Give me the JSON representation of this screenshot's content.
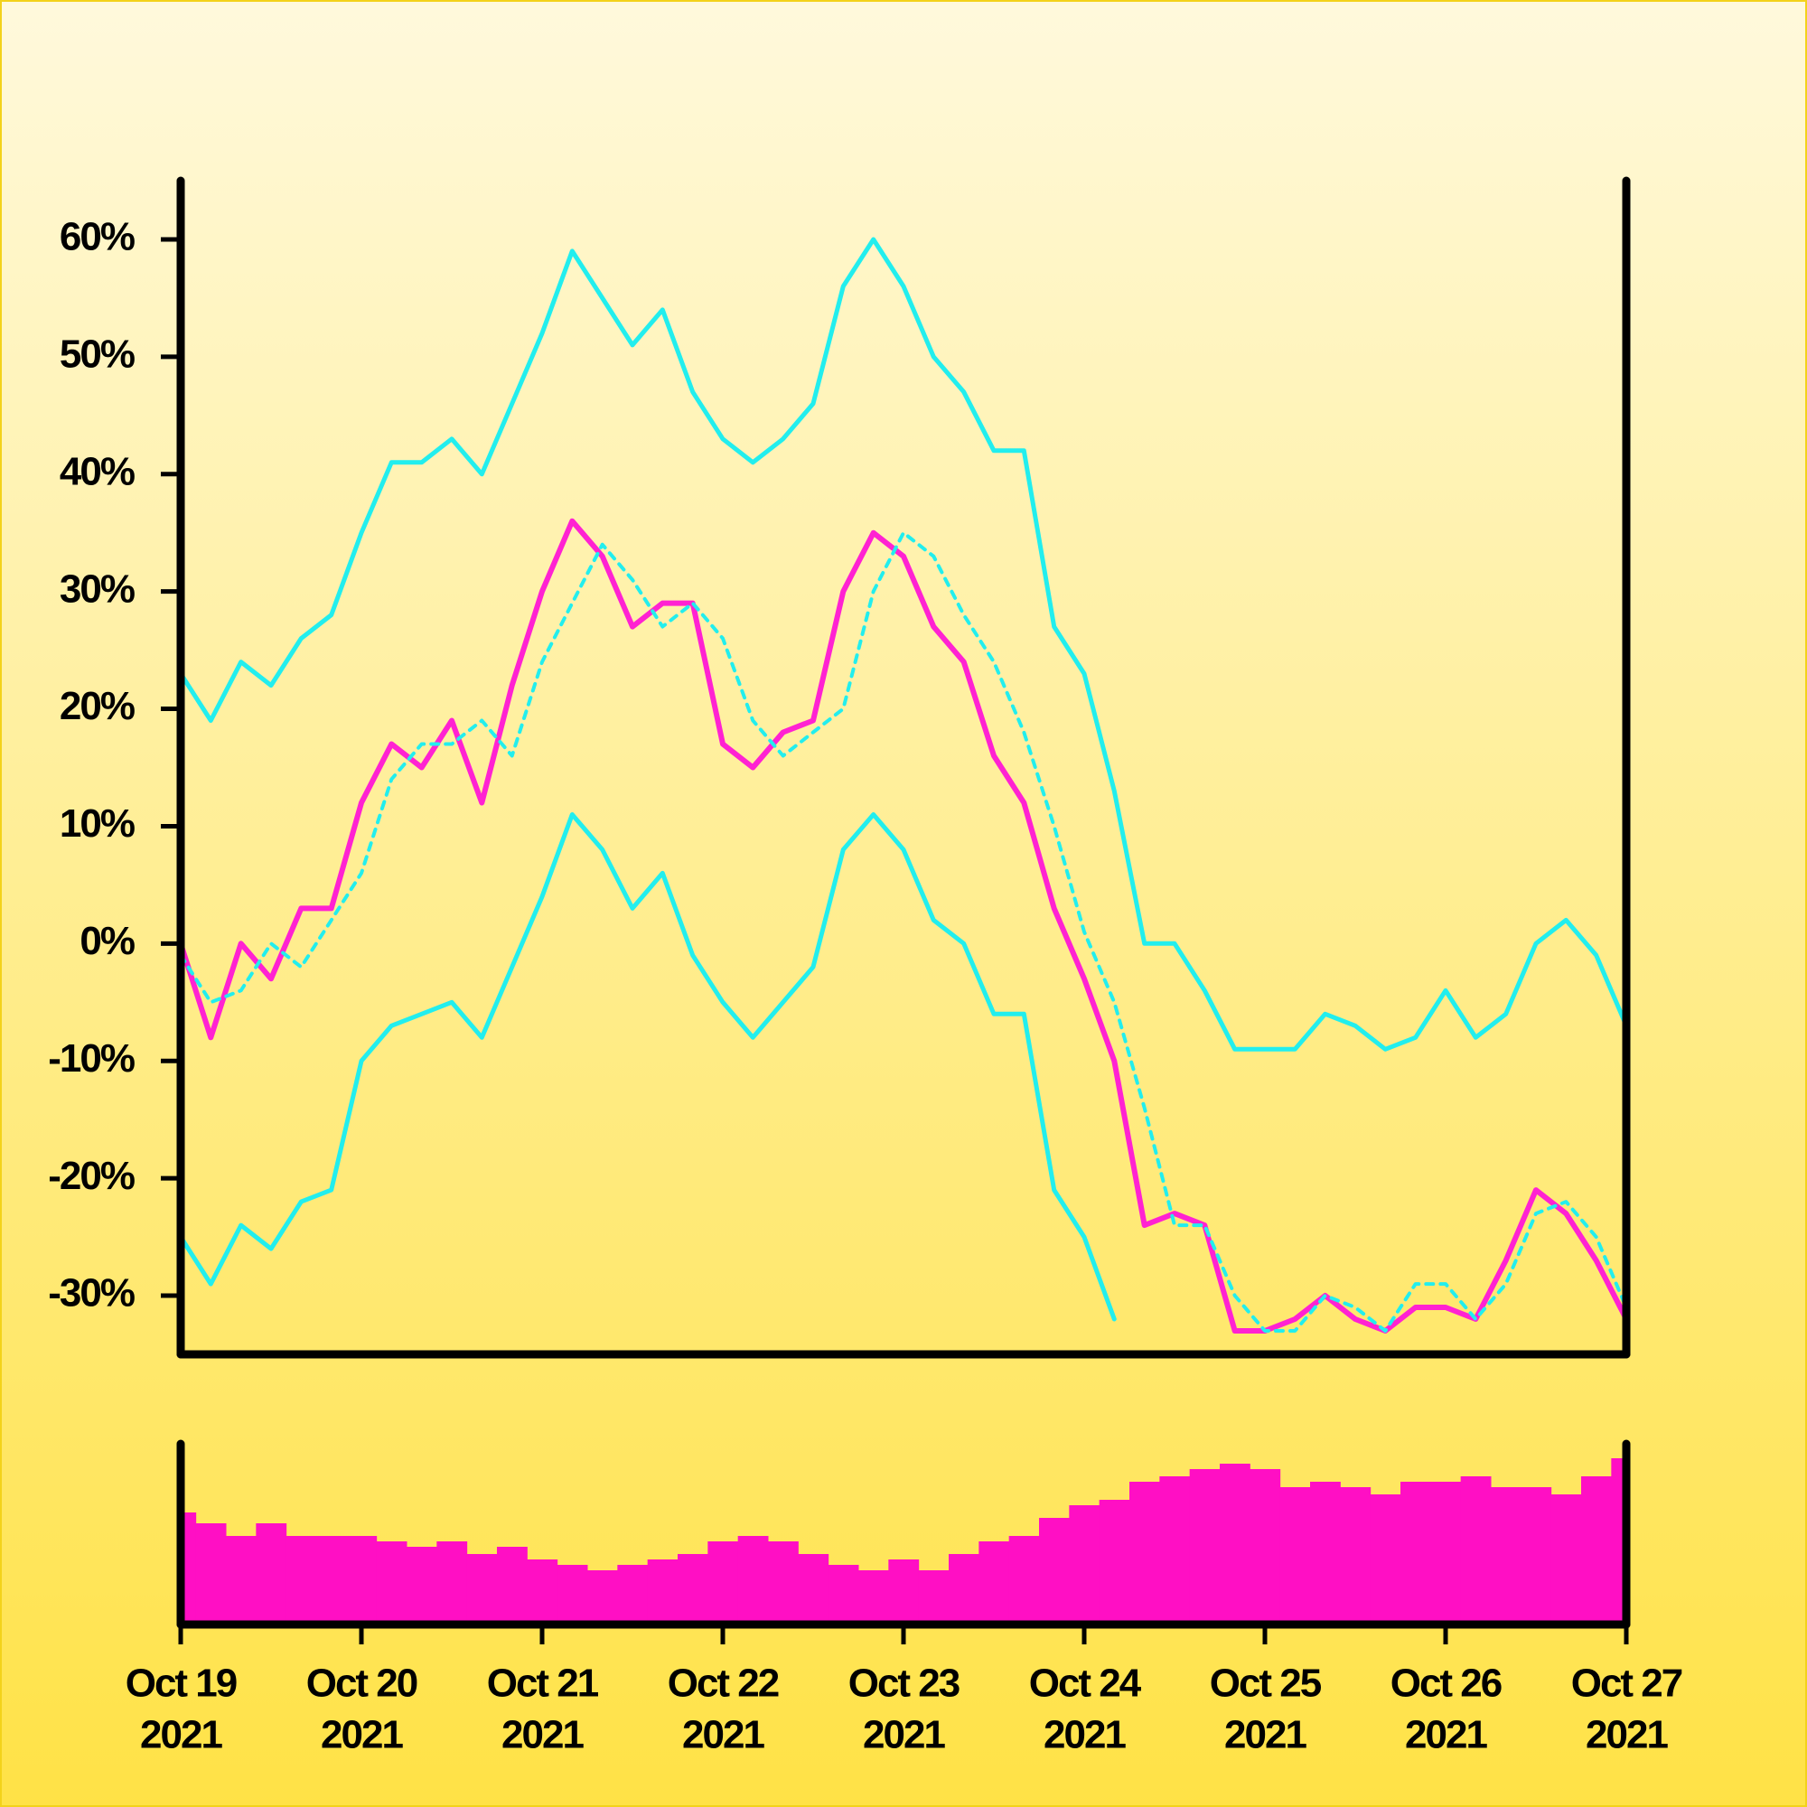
{
  "chart_data": [
    {
      "type": "line",
      "x": [
        "2021-10-19T00:00",
        "2021-10-19T04:00",
        "2021-10-19T08:00",
        "2021-10-19T12:00",
        "2021-10-19T16:00",
        "2021-10-19T20:00",
        "2021-10-20T00:00",
        "2021-10-20T04:00",
        "2021-10-20T08:00",
        "2021-10-20T12:00",
        "2021-10-20T16:00",
        "2021-10-20T20:00",
        "2021-10-21T00:00",
        "2021-10-21T04:00",
        "2021-10-21T08:00",
        "2021-10-21T12:00",
        "2021-10-21T16:00",
        "2021-10-21T20:00",
        "2021-10-22T00:00",
        "2021-10-22T04:00",
        "2021-10-22T08:00",
        "2021-10-22T12:00",
        "2021-10-22T16:00",
        "2021-10-22T20:00",
        "2021-10-23T00:00",
        "2021-10-23T04:00",
        "2021-10-23T08:00",
        "2021-10-23T12:00",
        "2021-10-23T16:00",
        "2021-10-23T20:00",
        "2021-10-24T00:00",
        "2021-10-24T04:00",
        "2021-10-24T08:00",
        "2021-10-24T12:00",
        "2021-10-24T16:00",
        "2021-10-24T20:00",
        "2021-10-25T00:00",
        "2021-10-25T04:00",
        "2021-10-25T08:00",
        "2021-10-25T12:00",
        "2021-10-25T16:00",
        "2021-10-25T20:00",
        "2021-10-26T00:00",
        "2021-10-26T04:00",
        "2021-10-26T08:00",
        "2021-10-26T12:00",
        "2021-10-26T16:00",
        "2021-10-26T20:00",
        "2021-10-27T00:00"
      ],
      "xlim": [
        "2021-10-19T00:00",
        "2021-10-27T00:00"
      ],
      "series": [
        {
          "color": "#ff22d2",
          "style": "solid",
          "width": 6,
          "values": [
            0,
            -8,
            0,
            -3,
            3,
            3,
            12,
            17,
            15,
            19,
            12,
            22,
            30,
            36,
            33,
            27,
            29,
            29,
            17,
            15,
            18,
            19,
            30,
            35,
            33,
            27,
            24,
            16,
            12,
            3,
            -3,
            -10,
            -24,
            -23,
            -24,
            -33,
            -33,
            -32,
            -30,
            -32,
            -33,
            -31,
            -31,
            -32,
            -27,
            -21,
            -23,
            -27,
            -32
          ]
        },
        {
          "color": "#22eeee",
          "style": "dashed",
          "width": 4,
          "values": [
            -1,
            -5,
            -4,
            0,
            -2,
            2,
            6,
            14,
            17,
            17,
            19,
            16,
            24,
            29,
            34,
            31,
            27,
            29,
            26,
            19,
            16,
            18,
            20,
            30,
            35,
            33,
            28,
            24,
            18,
            10,
            1,
            -5,
            -14,
            -24,
            -24,
            -30,
            -33,
            -33,
            -30,
            -31,
            -33,
            -29,
            -29,
            -32,
            -29,
            -23,
            -22,
            -25,
            -31
          ]
        },
        {
          "color": "#22eeee",
          "style": "solid",
          "width": 5,
          "values": [
            23,
            19,
            24,
            22,
            26,
            28,
            35,
            41,
            41,
            43,
            40,
            46,
            52,
            59,
            55,
            51,
            54,
            47,
            43,
            41,
            43,
            46,
            56,
            60,
            56,
            50,
            47,
            42,
            42,
            27,
            23,
            13,
            0,
            0,
            -4,
            -9,
            -9,
            -9,
            -6,
            -7,
            -9,
            -8,
            -4,
            -8,
            -6,
            0,
            2,
            -1,
            -7
          ]
        },
        {
          "color": "#22eeee",
          "style": "solid",
          "width": 5,
          "values": [
            -25,
            -29,
            -24,
            -26,
            -22,
            -21,
            -10,
            -7,
            -6,
            -5,
            -8,
            -2,
            4,
            11,
            8,
            3,
            6,
            -1,
            -5,
            -8,
            -5,
            -2,
            8,
            11,
            8,
            2,
            0,
            -6,
            -6,
            -21,
            -25,
            -32,
            null,
            null,
            null,
            null,
            null,
            null,
            null,
            null,
            null,
            null,
            null,
            null,
            null,
            null,
            null,
            null,
            null
          ]
        }
      ],
      "ylim": [
        -35,
        65
      ],
      "yticks": [
        {
          "value": -30,
          "label": "-30%"
        },
        {
          "value": -20,
          "label": "-20%"
        },
        {
          "value": -10,
          "label": "-10%"
        },
        {
          "value": 0,
          "label": "0%"
        },
        {
          "value": 10,
          "label": "10%"
        },
        {
          "value": 20,
          "label": "20%"
        },
        {
          "value": 30,
          "label": "30%"
        },
        {
          "value": 40,
          "label": "40%"
        },
        {
          "value": 50,
          "label": "50%"
        },
        {
          "value": 60,
          "label": "60%"
        }
      ]
    },
    {
      "type": "bar",
      "x": [
        "2021-10-19T00:00",
        "2021-10-19T04:00",
        "2021-10-19T08:00",
        "2021-10-19T12:00",
        "2021-10-19T16:00",
        "2021-10-19T20:00",
        "2021-10-20T00:00",
        "2021-10-20T04:00",
        "2021-10-20T08:00",
        "2021-10-20T12:00",
        "2021-10-20T16:00",
        "2021-10-20T20:00",
        "2021-10-21T00:00",
        "2021-10-21T04:00",
        "2021-10-21T08:00",
        "2021-10-21T12:00",
        "2021-10-21T16:00",
        "2021-10-21T20:00",
        "2021-10-22T00:00",
        "2021-10-22T04:00",
        "2021-10-22T08:00",
        "2021-10-22T12:00",
        "2021-10-22T16:00",
        "2021-10-22T20:00",
        "2021-10-23T00:00",
        "2021-10-23T04:00",
        "2021-10-23T08:00",
        "2021-10-23T12:00",
        "2021-10-23T16:00",
        "2021-10-23T20:00",
        "2021-10-24T00:00",
        "2021-10-24T04:00",
        "2021-10-24T08:00",
        "2021-10-24T12:00",
        "2021-10-24T16:00",
        "2021-10-24T20:00",
        "2021-10-25T00:00",
        "2021-10-25T04:00",
        "2021-10-25T08:00",
        "2021-10-25T12:00",
        "2021-10-25T16:00",
        "2021-10-25T20:00",
        "2021-10-26T00:00",
        "2021-10-26T04:00",
        "2021-10-26T08:00",
        "2021-10-26T12:00",
        "2021-10-26T16:00",
        "2021-10-26T20:00",
        "2021-10-27T00:00"
      ],
      "xlim": [
        "2021-10-19T00:00",
        "2021-10-27T00:00"
      ],
      "values": [
        62,
        56,
        49,
        56,
        49,
        49,
        49,
        46,
        43,
        46,
        39,
        43,
        36,
        33,
        30,
        33,
        36,
        39,
        46,
        49,
        46,
        39,
        33,
        30,
        36,
        30,
        39,
        46,
        49,
        59,
        66,
        69,
        79,
        82,
        86,
        89,
        86,
        76,
        79,
        76,
        72,
        79,
        79,
        82,
        76,
        76,
        72,
        82,
        92
      ],
      "color": "#ff0fc4",
      "ylim": [
        0,
        100
      ],
      "xticks": [
        {
          "value": "2021-10-19T00:00",
          "label": [
            "Oct 19",
            "2021"
          ]
        },
        {
          "value": "2021-10-20T00:00",
          "label": [
            "Oct 20",
            "2021"
          ]
        },
        {
          "value": "2021-10-21T00:00",
          "label": [
            "Oct 21",
            "2021"
          ]
        },
        {
          "value": "2021-10-22T00:00",
          "label": [
            "Oct 22",
            "2021"
          ]
        },
        {
          "value": "2021-10-23T00:00",
          "label": [
            "Oct 23",
            "2021"
          ]
        },
        {
          "value": "2021-10-24T00:00",
          "label": [
            "Oct 24",
            "2021"
          ]
        },
        {
          "value": "2021-10-25T00:00",
          "label": [
            "Oct 25",
            "2021"
          ]
        },
        {
          "value": "2021-10-26T00:00",
          "label": [
            "Oct 26",
            "2021"
          ]
        },
        {
          "value": "2021-10-27T00:00",
          "label": [
            "Oct 27",
            "2021"
          ]
        }
      ]
    }
  ]
}
